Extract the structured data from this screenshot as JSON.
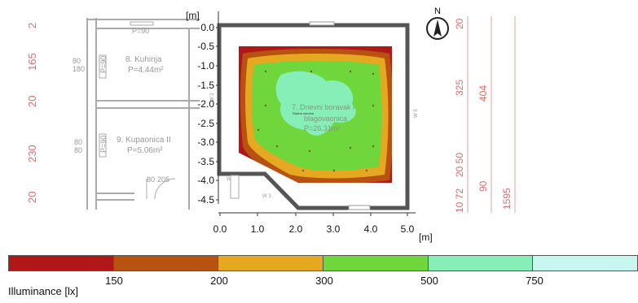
{
  "axis": {
    "unit_label_y": "[m]",
    "unit_label_x": "[m]",
    "y_ticks": [
      "0.0",
      "-0.5",
      "-1.0",
      "-1.5",
      "-2.0",
      "-2.5",
      "-3.0",
      "-3.5",
      "-4.0",
      "-4.5"
    ],
    "x_ticks": [
      "0.0",
      "1.0",
      "2.0",
      "3.0",
      "4.0",
      "5.0"
    ]
  },
  "compass": {
    "label": "N"
  },
  "left_rooms": [
    {
      "name": "8. Kuhinja",
      "area": "P=4.44m²"
    },
    {
      "name": "9. Kupaonica II",
      "area": "P=5.06m²"
    }
  ],
  "left_small_labels": [
    "P=90",
    "80\n180",
    "80\n80",
    "P=90",
    "P=90",
    "80\n205"
  ],
  "left_dimensions": [
    "2",
    "165",
    "20",
    "230",
    "20"
  ],
  "right_dimensions": [
    "20",
    "325",
    "404",
    "20 50",
    "90",
    "1595",
    "10 72"
  ],
  "main_room": {
    "name": "7. Dnevni boravak i",
    "name2": "blagovaonica",
    "area": "P=26.31m²",
    "small_label": "Radna ravnina"
  },
  "legend": {
    "colors": [
      "#b01818",
      "#b85210",
      "#e6a820",
      "#6fd63c",
      "#86efb8",
      "#c8f7f0"
    ],
    "ticks": [
      "150",
      "200",
      "300",
      "500",
      "750"
    ],
    "title": "Illuminance [lx]"
  }
}
